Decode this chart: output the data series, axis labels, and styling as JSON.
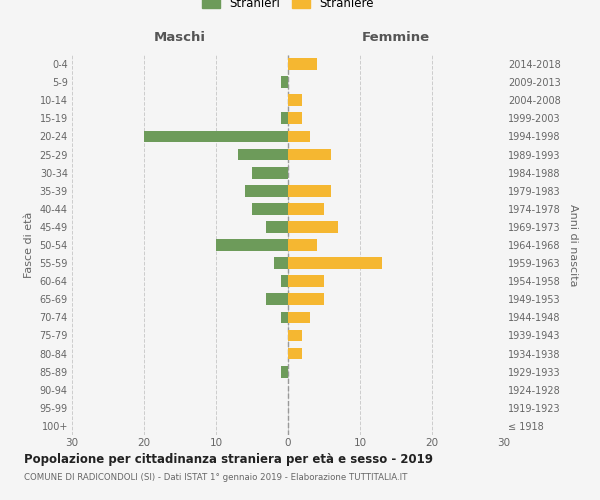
{
  "age_groups": [
    "100+",
    "95-99",
    "90-94",
    "85-89",
    "80-84",
    "75-79",
    "70-74",
    "65-69",
    "60-64",
    "55-59",
    "50-54",
    "45-49",
    "40-44",
    "35-39",
    "30-34",
    "25-29",
    "20-24",
    "15-19",
    "10-14",
    "5-9",
    "0-4"
  ],
  "birth_years": [
    "≤ 1918",
    "1919-1923",
    "1924-1928",
    "1929-1933",
    "1934-1938",
    "1939-1943",
    "1944-1948",
    "1949-1953",
    "1954-1958",
    "1959-1963",
    "1964-1968",
    "1969-1973",
    "1974-1978",
    "1979-1983",
    "1984-1988",
    "1989-1993",
    "1994-1998",
    "1999-2003",
    "2004-2008",
    "2009-2013",
    "2014-2018"
  ],
  "maschi": [
    0,
    0,
    0,
    1,
    0,
    0,
    1,
    3,
    1,
    2,
    10,
    3,
    5,
    6,
    5,
    7,
    20,
    1,
    0,
    1,
    0
  ],
  "femmine": [
    0,
    0,
    0,
    0,
    2,
    2,
    3,
    5,
    5,
    13,
    4,
    7,
    5,
    6,
    0,
    6,
    3,
    2,
    2,
    0,
    4
  ],
  "color_maschi": "#6d9b5a",
  "color_femmine": "#f5b731",
  "background_color": "#f5f5f5",
  "grid_color": "#cccccc",
  "title": "Popolazione per cittadinanza straniera per età e sesso - 2019",
  "subtitle": "COMUNE DI RADICONDOLI (SI) - Dati ISTAT 1° gennaio 2019 - Elaborazione TUTTITALIA.IT",
  "xlabel_maschi": "Maschi",
  "xlabel_femmine": "Femmine",
  "ylabel": "Fasce di età",
  "ylabel_right": "Anni di nascita",
  "legend_maschi": "Stranieri",
  "legend_femmine": "Straniere",
  "xlim": 30
}
